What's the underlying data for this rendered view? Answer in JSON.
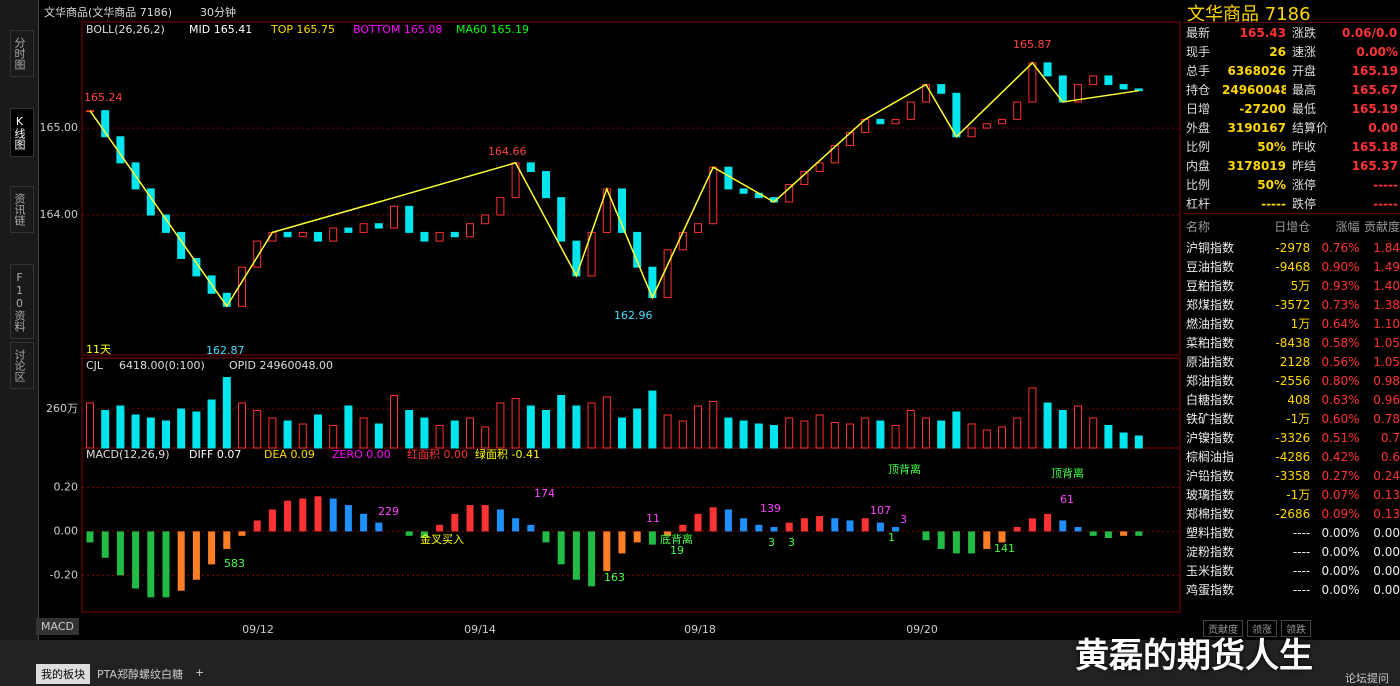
{
  "header": {
    "title": "文华商品(文华商品  7186)",
    "period": "30分钟"
  },
  "sidebar": [
    "分时图",
    "K线图",
    "资讯链",
    "F10资料",
    "讨论区"
  ],
  "price_panel": {
    "legend": [
      "BOLL(26,26,2)",
      "MID 165.41",
      "TOP 165.75",
      "BOTTOM 165.08",
      "MA60 165.19"
    ],
    "ylim": [
      162.39,
      166.22
    ],
    "yticks": [
      {
        "value": 165,
        "label": "165.00"
      },
      {
        "value": 164,
        "label": "164.00"
      }
    ],
    "closes": [
      165.2,
      164.9,
      164.6,
      164.3,
      164.0,
      163.8,
      163.5,
      163.3,
      163.1,
      162.95,
      163.4,
      163.7,
      163.8,
      163.75,
      163.8,
      163.7,
      163.85,
      163.8,
      163.9,
      163.85,
      164.1,
      163.8,
      163.7,
      163.8,
      163.75,
      163.9,
      164.0,
      164.2,
      164.6,
      164.5,
      164.2,
      163.7,
      163.3,
      163.8,
      164.3,
      163.8,
      163.4,
      163.05,
      163.6,
      163.8,
      163.9,
      164.55,
      164.3,
      164.25,
      164.2,
      164.15,
      164.35,
      164.5,
      164.6,
      164.8,
      164.95,
      165.1,
      165.05,
      165.1,
      165.3,
      165.5,
      165.4,
      164.9,
      165.0,
      165.05,
      165.1,
      165.3,
      165.75,
      165.6,
      165.3,
      165.5,
      165.6,
      165.5,
      165.45,
      165.43
    ],
    "annotations": [
      "165.24",
      "162.87",
      "164.66",
      "162.96",
      "165.87",
      "11天"
    ]
  },
  "volume_panel": {
    "legend": [
      "CJL",
      "6418.00(0:100)",
      "OPID 24960048.00"
    ],
    "ylim": [
      0,
      600
    ],
    "yticks": [
      {
        "value": 260,
        "label": "260万"
      }
    ],
    "values": [
      300,
      250,
      280,
      220,
      200,
      180,
      260,
      240,
      320,
      470,
      300,
      250,
      200,
      180,
      160,
      220,
      150,
      280,
      200,
      160,
      350,
      250,
      200,
      150,
      180,
      200,
      140,
      300,
      330,
      280,
      250,
      350,
      280,
      300,
      340,
      200,
      260,
      380,
      220,
      180,
      280,
      310,
      200,
      180,
      160,
      150,
      200,
      180,
      220,
      170,
      160,
      200,
      180,
      150,
      250,
      200,
      180,
      240,
      160,
      120,
      140,
      200,
      400,
      300,
      250,
      280,
      200,
      150,
      100,
      80
    ]
  },
  "macd_panel": {
    "legend": [
      "MACD(12,26,9)",
      "DIFF 0.07",
      "DEA 0.09",
      "ZERO 0.00",
      "红面积 0.00",
      "绿面积 -0.41"
    ],
    "ylim": [
      -0.367,
      0.38
    ],
    "yticks": [
      {
        "value": 0.2,
        "label": "0.20"
      },
      {
        "value": 0,
        "label": "0.00"
      },
      {
        "value": -0.2,
        "label": "-0.20"
      }
    ],
    "values": [
      -0.05,
      -0.12,
      -0.2,
      -0.26,
      -0.3,
      -0.3,
      -0.27,
      -0.22,
      -0.15,
      -0.08,
      -0.02,
      0.05,
      0.1,
      0.14,
      0.15,
      0.16,
      0.15,
      0.12,
      0.08,
      0.04,
      0.0,
      -0.02,
      -0.03,
      0.03,
      0.08,
      0.12,
      0.12,
      0.1,
      0.06,
      0.03,
      -0.05,
      -0.15,
      -0.22,
      -0.25,
      -0.18,
      -0.1,
      -0.05,
      -0.06,
      -0.02,
      0.03,
      0.08,
      0.11,
      0.1,
      0.06,
      0.03,
      0.02,
      0.04,
      0.06,
      0.07,
      0.06,
      0.05,
      0.06,
      0.04,
      0.02,
      0.0,
      -0.04,
      -0.08,
      -0.1,
      -0.1,
      -0.08,
      -0.05,
      0.02,
      0.06,
      0.08,
      0.05,
      0.02,
      -0.02,
      -0.03,
      -0.02,
      -0.02
    ],
    "annotations": [
      "229",
      "174",
      "11",
      "139",
      "107",
      "3",
      "583",
      "163",
      "19",
      "3",
      "3",
      "1",
      "141",
      "61",
      "顶背离",
      "顶背离",
      "金叉买入",
      "底背离"
    ]
  },
  "dates": [
    "09/12",
    "09/14",
    "09/18",
    "09/20"
  ],
  "bottom_tabs": [
    "MACD",
    "我的板块",
    "PTA郑醇螺纹白糖",
    "+"
  ],
  "quote": {
    "title": "文华商品  7186",
    "rows": [
      [
        "最新",
        "165.43",
        "涨跌",
        "0.06/0.03%"
      ],
      [
        "现手",
        "26",
        "速涨",
        "0.00%"
      ],
      [
        "总手",
        "6368026",
        "开盘",
        "165.19"
      ],
      [
        "持仓",
        "24960048",
        "最高",
        "165.67"
      ],
      [
        "日增",
        "-27200",
        "最低",
        "165.19"
      ],
      [
        "外盘",
        "3190167",
        "结算价",
        "0.00"
      ],
      [
        "比例",
        "50%",
        "昨收",
        "165.18"
      ],
      [
        "内盘",
        "3178019",
        "昨结",
        "165.37"
      ],
      [
        "比例",
        "50%",
        "涨停",
        "-----"
      ],
      [
        "杠杆",
        "-----",
        "跌停",
        "-----"
      ]
    ]
  },
  "table": {
    "header": [
      "名称",
      "日增仓",
      "涨幅",
      "贡献度"
    ],
    "rows": [
      [
        "沪铜指数",
        "-2978",
        "0.76%",
        "1.84"
      ],
      [
        "豆油指数",
        "-9468",
        "0.90%",
        "1.49"
      ],
      [
        "豆粕指数",
        "5万",
        "0.93%",
        "1.40"
      ],
      [
        "郑煤指数",
        "-3572",
        "0.73%",
        "1.38"
      ],
      [
        "燃油指数",
        "1万",
        "0.64%",
        "1.10"
      ],
      [
        "菜粕指数",
        "-8438",
        "0.58%",
        "1.05"
      ],
      [
        "原油指数",
        "2128",
        "0.56%",
        "1.05"
      ],
      [
        "郑油指数",
        "-2556",
        "0.80%",
        "0.98"
      ],
      [
        "白糖指数",
        "408",
        "0.63%",
        "0.96"
      ],
      [
        "铁矿指数",
        "-1万",
        "0.60%",
        "0.78"
      ],
      [
        "沪镍指数",
        "-3326",
        "0.51%",
        "0.7"
      ],
      [
        "棕榈油指",
        "-4286",
        "0.42%",
        "0.6"
      ],
      [
        "沪铅指数",
        "-3358",
        "0.27%",
        "0.24"
      ],
      [
        "玻璃指数",
        "-1万",
        "0.07%",
        "0.13"
      ],
      [
        "郑棉指数",
        "-2686",
        "0.09%",
        "0.13"
      ],
      [
        "塑料指数",
        "----",
        "0.00%",
        "0.00"
      ],
      [
        "淀粉指数",
        "----",
        "0.00%",
        "0.00"
      ],
      [
        "玉米指数",
        "----",
        "0.00%",
        "0.00"
      ],
      [
        "鸡蛋指数",
        "----",
        "0.00%",
        "0.00"
      ]
    ],
    "tabs": [
      "贡献度",
      "领涨",
      "领跌"
    ]
  },
  "forum": "论坛提问",
  "watermark": "黄磊的期货人生"
}
